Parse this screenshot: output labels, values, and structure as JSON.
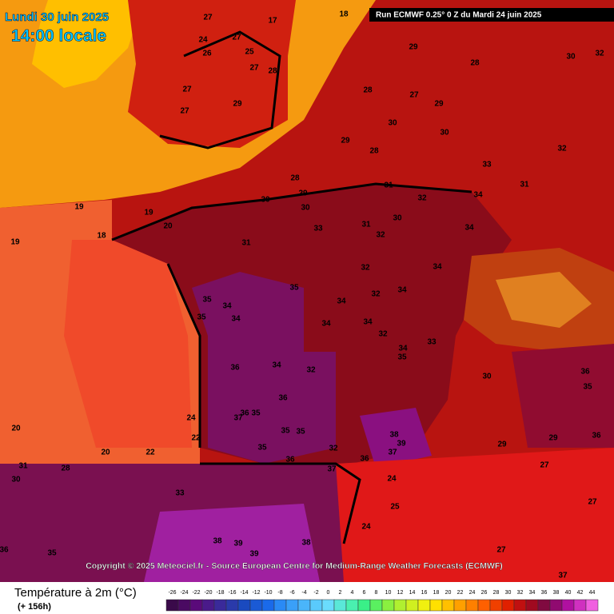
{
  "header": {
    "date": "Lundi 30 juin 2025",
    "time": "14:00 locale",
    "run": "Run ECMWF 0.25° 0 Z du Mardi 24 juin 2025"
  },
  "copyright": "Copyright © 2025 Meteociel.fr - Source European Centre for Medium-Range Weather Forecasts (ECMWF)",
  "legend": {
    "title": "Température à 2m (°C)",
    "lead": "(+ 156h)",
    "ticks": [
      -26,
      -24,
      -22,
      -20,
      -18,
      -16,
      -14,
      -12,
      -10,
      -8,
      -6,
      -4,
      -2,
      0,
      2,
      4,
      6,
      8,
      10,
      12,
      14,
      16,
      18,
      20,
      22,
      24,
      26,
      28,
      30,
      32,
      34,
      36,
      38,
      40,
      42,
      44
    ],
    "colors": [
      "#3a0a4a",
      "#4a0a62",
      "#5a0a7a",
      "#4a1a8a",
      "#3a2a9a",
      "#2a3aaa",
      "#1a4abf",
      "#1a5ad5",
      "#1a6aea",
      "#2a8af5",
      "#3aa0f8",
      "#4ab5fa",
      "#5acafc",
      "#6adcfd",
      "#5ae8d8",
      "#4af0b0",
      "#3af088",
      "#5af060",
      "#8af040",
      "#b0f030",
      "#d0f020",
      "#f0f010",
      "#ffe000",
      "#ffc000",
      "#ffa000",
      "#ff8000",
      "#ff6000",
      "#f04000",
      "#e02000",
      "#c01010",
      "#a00a20",
      "#800a40",
      "#900a70",
      "#b010a0",
      "#d030c0",
      "#f060e0"
    ]
  },
  "map": {
    "temperatures": [
      27,
      27,
      24,
      26,
      25,
      27,
      28,
      27,
      29,
      27,
      17,
      18,
      19,
      19,
      19,
      18,
      20,
      29,
      28,
      30,
      32,
      28,
      27,
      29,
      30,
      30,
      29,
      28,
      33,
      32,
      28,
      29,
      30,
      30,
      31,
      32,
      34,
      31,
      33,
      31,
      30,
      32,
      34,
      31,
      32,
      34,
      35,
      35,
      34,
      34,
      32,
      34,
      35,
      34,
      34,
      34,
      32,
      33,
      36,
      34,
      32,
      34,
      35,
      36,
      37,
      36,
      35,
      24,
      22,
      35,
      35,
      35,
      36,
      32,
      38,
      39,
      37,
      36,
      37,
      33,
      24,
      25,
      24,
      38,
      39,
      39,
      38,
      36,
      35,
      20,
      20,
      22,
      31,
      28,
      30,
      36,
      35,
      30,
      29,
      29,
      27,
      27,
      27,
      36,
      37
    ]
  }
}
